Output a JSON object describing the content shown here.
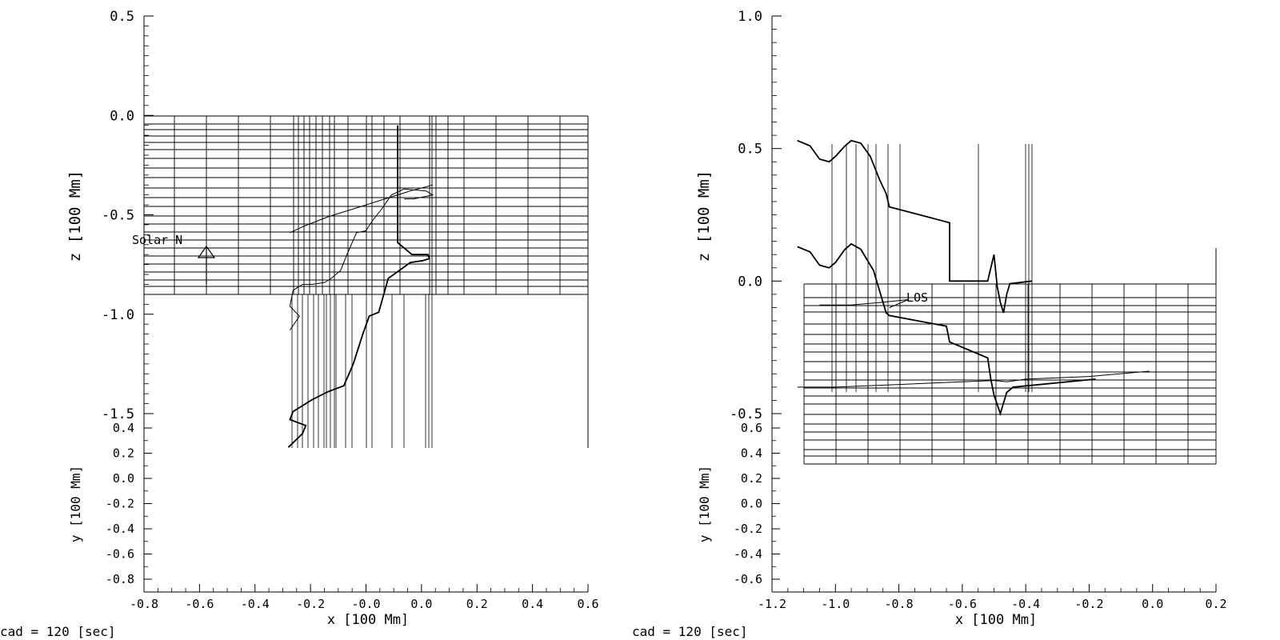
{
  "chart_data": [
    {
      "type": "line",
      "title": "",
      "xlabel": "x [100 Mm]",
      "zlabel": "z [100 Mm]",
      "ylabel": "y [100 Mm]",
      "x_ticks": [
        "-0.8",
        "-0.6",
        "-0.4",
        "-0.2",
        "-0.0",
        "0.0",
        "0.2",
        "0.4",
        "0.6"
      ],
      "z_ticks": [
        "0.5",
        "0.0",
        "-0.5",
        "-1.0",
        "-1.5"
      ],
      "y_ticks": [
        "0.4",
        "0.2",
        "0.0",
        "-0.2",
        "-0.4",
        "-0.6",
        "-0.8"
      ],
      "annotation": "Solar N",
      "footer": "cad = 120 [sec]",
      "grid": true,
      "series": [
        {
          "values": [
            [
              -0.345,
              -1.67
            ],
            [
              -0.3,
              -1.6
            ],
            [
              -0.29,
              -1.56
            ],
            [
              -0.34,
              -1.53
            ],
            [
              -0.33,
              -1.49
            ],
            [
              -0.27,
              -1.43
            ],
            [
              -0.22,
              -1.39
            ],
            [
              -0.17,
              -1.36
            ],
            [
              -0.14,
              -1.25
            ],
            [
              -0.11,
              -1.1
            ],
            [
              -0.09,
              -1.01
            ],
            [
              -0.06,
              -0.99
            ],
            [
              -0.03,
              -0.82
            ],
            [
              0.04,
              -0.74
            ],
            [
              0.08,
              -0.73
            ],
            [
              0.1,
              -0.72
            ],
            [
              0.095,
              -0.7
            ],
            [
              0.045,
              -0.7
            ],
            [
              0.0,
              -0.64
            ],
            [
              0.0,
              -0.05
            ]
          ]
        },
        {
          "values": [
            [
              -0.34,
              -1.08
            ],
            [
              -0.31,
              -1.01
            ],
            [
              -0.34,
              -0.96
            ],
            [
              -0.33,
              -0.88
            ],
            [
              -0.3,
              -0.85
            ],
            [
              -0.27,
              -0.85
            ],
            [
              -0.23,
              -0.84
            ],
            [
              -0.21,
              -0.82
            ],
            [
              -0.18,
              -0.78
            ],
            [
              -0.16,
              -0.7
            ],
            [
              -0.13,
              -0.59
            ],
            [
              -0.1,
              -0.58
            ],
            [
              -0.08,
              -0.53
            ],
            [
              -0.05,
              -0.47
            ],
            [
              -0.02,
              -0.4
            ],
            [
              0.02,
              -0.37
            ],
            [
              0.09,
              -0.38
            ],
            [
              0.11,
              -0.4
            ],
            [
              0.05,
              -0.42
            ],
            [
              0.02,
              -0.42
            ]
          ]
        },
        {
          "values": [
            [
              -0.34,
              -0.59
            ],
            [
              -0.3,
              -0.56
            ],
            [
              -0.22,
              -0.51
            ],
            [
              -0.12,
              -0.46
            ],
            [
              -0.02,
              -0.41
            ],
            [
              0.04,
              -0.38
            ],
            [
              0.11,
              -0.35
            ]
          ]
        }
      ]
    },
    {
      "type": "line",
      "title": "",
      "xlabel": "x [100 Mm]",
      "zlabel": "z [100 Mm]",
      "ylabel": "y [100 Mm]",
      "x_ticks": [
        "-1.2",
        "-1.0",
        "-0.8",
        "-0.6",
        "-0.4",
        "-0.2",
        "0.0",
        "0.2"
      ],
      "z_ticks": [
        "1.0",
        "0.5",
        "0.0",
        "-0.5"
      ],
      "y_ticks": [
        "0.6",
        "0.4",
        "0.2",
        "0.0",
        "-0.2",
        "-0.4",
        "-0.6"
      ],
      "annotation": "LOS",
      "footer": "cad = 120 [sec]",
      "grid": true,
      "series": [
        {
          "values": [
            [
              -1.12,
              0.53
            ],
            [
              -1.08,
              0.51
            ],
            [
              -1.05,
              0.46
            ],
            [
              -1.02,
              0.45
            ],
            [
              -1.0,
              0.47
            ],
            [
              -0.97,
              0.51
            ],
            [
              -0.95,
              0.53
            ],
            [
              -0.92,
              0.52
            ],
            [
              -0.89,
              0.47
            ],
            [
              -0.86,
              0.38
            ],
            [
              -0.84,
              0.33
            ],
            [
              -0.83,
              0.28
            ],
            [
              -0.64,
              0.22
            ],
            [
              -0.64,
              0.0
            ],
            [
              -0.52,
              0.0
            ],
            [
              -0.5,
              0.1
            ],
            [
              -0.49,
              -0.02
            ],
            [
              -0.48,
              -0.08
            ],
            [
              -0.47,
              -0.12
            ],
            [
              -0.46,
              -0.05
            ],
            [
              -0.45,
              -0.01
            ],
            [
              -0.38,
              0.0
            ]
          ]
        },
        {
          "values": [
            [
              -1.12,
              0.13
            ],
            [
              -1.08,
              0.11
            ],
            [
              -1.05,
              0.06
            ],
            [
              -1.02,
              0.05
            ],
            [
              -1.0,
              0.07
            ],
            [
              -0.97,
              0.12
            ],
            [
              -0.95,
              0.14
            ],
            [
              -0.92,
              0.12
            ],
            [
              -0.88,
              0.04
            ],
            [
              -0.86,
              -0.04
            ],
            [
              -0.84,
              -0.12
            ],
            [
              -0.83,
              -0.13
            ],
            [
              -0.65,
              -0.17
            ],
            [
              -0.64,
              -0.23
            ],
            [
              -0.52,
              -0.29
            ],
            [
              -0.51,
              -0.37
            ],
            [
              -0.5,
              -0.43
            ],
            [
              -0.48,
              -0.5
            ],
            [
              -0.46,
              -0.42
            ],
            [
              -0.44,
              -0.4
            ],
            [
              -0.18,
              -0.37
            ]
          ]
        },
        {
          "values": [
            [
              -1.12,
              -0.4
            ],
            [
              -1.0,
              -0.4
            ],
            [
              -0.8,
              -0.39
            ],
            [
              -0.6,
              -0.38
            ],
            [
              -0.5,
              -0.375
            ],
            [
              -0.46,
              -0.38
            ],
            [
              -0.4,
              -0.37
            ],
            [
              -0.2,
              -0.36
            ],
            [
              -0.01,
              -0.34
            ]
          ]
        },
        {
          "values": [
            [
              -1.05,
              -0.09
            ],
            [
              -0.95,
              -0.09
            ],
            [
              -0.85,
              -0.08
            ],
            [
              -0.77,
              -0.07
            ],
            [
              -0.83,
              -0.1
            ],
            [
              -0.77,
              -0.07
            ]
          ]
        }
      ]
    }
  ]
}
